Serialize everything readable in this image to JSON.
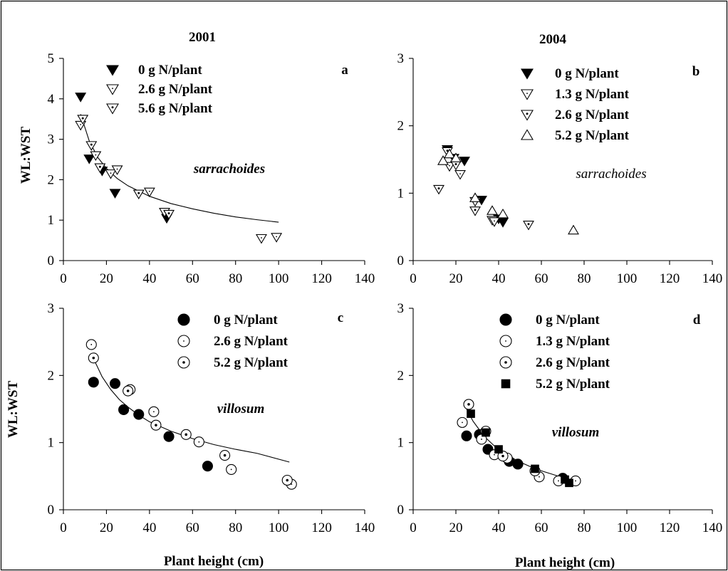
{
  "colors": {
    "ink": "#000000",
    "background": "#ffffff"
  },
  "chart_data": [
    {
      "type": "scatter",
      "panel_letter": "a",
      "title": "2001",
      "species_label": "sarrachoides",
      "ylabel": "WL:WST",
      "xlabel": "",
      "xlim": [
        0,
        140
      ],
      "ylim": [
        0,
        5
      ],
      "xticks": [
        "0",
        "20",
        "40",
        "60",
        "80",
        "100",
        "120",
        "140"
      ],
      "yticks": [
        "0",
        "1",
        "2",
        "3",
        "4",
        "5"
      ],
      "legend_position": "top-left",
      "fit_curve": {
        "x": [
          8,
          12,
          16,
          20,
          25,
          30,
          40,
          50,
          60,
          70,
          80,
          90,
          100
        ],
        "y": [
          3.62,
          2.96,
          2.55,
          2.28,
          2.03,
          1.85,
          1.59,
          1.41,
          1.28,
          1.17,
          1.08,
          1.01,
          0.95
        ]
      },
      "series": [
        {
          "name": "0 g N/plant",
          "marker": "triangle-down-filled",
          "x": [
            8,
            12,
            18,
            24,
            48
          ],
          "y": [
            4.05,
            2.52,
            2.22,
            1.67,
            1.05
          ]
        },
        {
          "name": "2.6 g N/plant",
          "marker": "triangle-down-open",
          "x": [
            8,
            15,
            22,
            25,
            40,
            47,
            92,
            99
          ],
          "y": [
            3.35,
            2.6,
            2.15,
            2.25,
            1.7,
            1.2,
            0.55,
            0.58
          ]
        },
        {
          "name": "5.6 g N/plant",
          "marker": "triangle-down-dotted",
          "x": [
            9,
            13,
            17,
            35,
            49
          ],
          "y": [
            3.5,
            2.85,
            2.3,
            1.65,
            1.15
          ]
        }
      ]
    },
    {
      "type": "scatter",
      "panel_letter": "b",
      "title": "2004",
      "species_label": "sarrachoides",
      "ylabel": "",
      "xlabel": "",
      "xlim": [
        0,
        140
      ],
      "ylim": [
        0,
        3
      ],
      "xticks": [
        "0",
        "20",
        "40",
        "60",
        "80",
        "100",
        "120",
        "140"
      ],
      "yticks": [
        "0",
        "1",
        "2",
        "3"
      ],
      "legend_position": "top-left",
      "series": [
        {
          "name": "0 g N/plant",
          "marker": "triangle-down-filled",
          "x": [
            16,
            19,
            24,
            32,
            40,
            42
          ],
          "y": [
            1.65,
            1.52,
            1.48,
            0.9,
            0.62,
            0.57
          ]
        },
        {
          "name": "1.3 g N/plant",
          "marker": "triangle-down-open",
          "x": [
            17,
            22,
            37,
            38
          ],
          "y": [
            1.4,
            1.28,
            0.6,
            0.58
          ]
        },
        {
          "name": "2.6 g N/plant",
          "marker": "triangle-down-dotted",
          "x": [
            12,
            16,
            20,
            29,
            29,
            54
          ],
          "y": [
            1.06,
            1.62,
            1.42,
            0.88,
            0.74,
            0.53
          ]
        },
        {
          "name": "5.2 g N/plant",
          "marker": "triangle-up-open",
          "x": [
            14,
            17,
            20,
            29,
            37,
            42,
            75
          ],
          "y": [
            1.48,
            1.58,
            1.52,
            0.93,
            0.74,
            0.69,
            0.45
          ]
        }
      ]
    },
    {
      "type": "scatter",
      "panel_letter": "c",
      "title": "",
      "species_label": "villosum",
      "ylabel": "WL:WST",
      "xlabel": "Plant height (cm)",
      "xlim": [
        0,
        140
      ],
      "ylim": [
        0,
        3
      ],
      "xticks": [
        "0",
        "20",
        "40",
        "60",
        "80",
        "100",
        "120",
        "140"
      ],
      "yticks": [
        "0",
        "1",
        "2",
        "3"
      ],
      "legend_position": "top-center",
      "fit_curve": {
        "x": [
          14,
          18,
          22,
          26,
          30,
          35,
          40,
          50,
          60,
          70,
          80,
          90,
          105
        ],
        "y": [
          2.25,
          1.98,
          1.79,
          1.64,
          1.53,
          1.41,
          1.31,
          1.17,
          1.06,
          0.97,
          0.9,
          0.84,
          0.71
        ]
      },
      "series": [
        {
          "name": "0 g N/plant",
          "marker": "circle-filled",
          "x": [
            14,
            24,
            28,
            35,
            49,
            67
          ],
          "y": [
            1.9,
            1.88,
            1.49,
            1.42,
            1.09,
            0.65
          ]
        },
        {
          "name": "2.6 g N/plant",
          "marker": "circle-open",
          "x": [
            13,
            31,
            42,
            63,
            78,
            106
          ],
          "y": [
            2.46,
            1.79,
            1.46,
            1.01,
            0.6,
            0.38
          ]
        },
        {
          "name": "5.2 g N/plant",
          "marker": "circle-dotted",
          "x": [
            14,
            30,
            43,
            57,
            75,
            104
          ],
          "y": [
            2.26,
            1.77,
            1.26,
            1.12,
            0.81,
            0.44
          ]
        }
      ]
    },
    {
      "type": "scatter",
      "panel_letter": "d",
      "title": "",
      "species_label": "villosum",
      "ylabel": "",
      "xlabel": "Plant height (cm)",
      "xlim": [
        0,
        140
      ],
      "ylim": [
        0,
        3
      ],
      "xticks": [
        "0",
        "20",
        "40",
        "60",
        "80",
        "100",
        "120",
        "140"
      ],
      "yticks": [
        "0",
        "1",
        "2",
        "3"
      ],
      "legend_position": "top-center",
      "fit_curve": {
        "x": [
          25,
          28,
          31,
          34,
          38,
          42,
          46,
          50,
          55,
          60,
          65,
          70,
          75
        ],
        "y": [
          1.5,
          1.32,
          1.19,
          1.07,
          0.95,
          0.86,
          0.78,
          0.71,
          0.64,
          0.58,
          0.53,
          0.48,
          0.44
        ]
      },
      "series": [
        {
          "name": "0 g N/plant",
          "marker": "circle-filled",
          "x": [
            25,
            31,
            35,
            45,
            49,
            70
          ],
          "y": [
            1.1,
            1.12,
            0.9,
            0.72,
            0.68,
            0.47
          ]
        },
        {
          "name": "1.3 g N/plant",
          "marker": "circle-open",
          "x": [
            23,
            32,
            38,
            44,
            59,
            68,
            76
          ],
          "y": [
            1.3,
            1.05,
            0.82,
            0.77,
            0.49,
            0.43,
            0.43
          ]
        },
        {
          "name": "2.6 g N/plant",
          "marker": "circle-dotted",
          "x": [
            26,
            34,
            42,
            57
          ],
          "y": [
            1.57,
            1.17,
            0.8,
            0.58
          ]
        },
        {
          "name": "5.2 g N/plant",
          "marker": "square-filled",
          "x": [
            27,
            34,
            40,
            57,
            71,
            73
          ],
          "y": [
            1.43,
            1.15,
            0.9,
            0.61,
            0.45,
            0.4
          ]
        }
      ]
    }
  ]
}
